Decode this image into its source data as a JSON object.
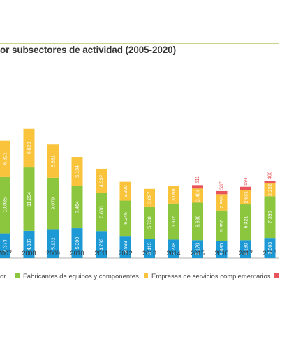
{
  "title": "or subsectores de actividad (2005-2020)",
  "colors": {
    "blue": "#1d9ad6",
    "green": "#8cc63f",
    "yellow": "#f9c33b",
    "red": "#e8545a",
    "axis": "#999999",
    "label": "#333333"
  },
  "legend": {
    "item0_tail": "or",
    "item1": "Fabricantes de equipos y componentes",
    "item2": "Empresas de servicios complementarios"
  },
  "chart_data": {
    "type": "bar",
    "stacked": true,
    "title": "or subsectores de actividad (2005-2020)",
    "categories": [
      "2007",
      "2008",
      "2009",
      "2010",
      "2011",
      "2012",
      "2013",
      "2014",
      "2015",
      "2016",
      "2017",
      "2018"
    ],
    "series": [
      {
        "name": "",
        "color": "#1d9ad6",
        "values": [
          4373,
          4837,
          5132,
          5300,
          4793,
          3933,
          3413,
          3278,
          3179,
          3080,
          3180,
          3563
        ],
        "labels": [
          "4.373",
          "4.837",
          "5.132",
          "5.300",
          "4.793",
          "3.933",
          "3.413",
          "3.278",
          "3.179",
          "3.080",
          "3.180",
          "3.563"
        ]
      },
      {
        "name": "Fabricantes de equipos y componentes",
        "color": "#8cc63f",
        "values": [
          10085,
          11204,
          9079,
          7464,
          6688,
          6246,
          5738,
          6376,
          6639,
          5350,
          6321,
          7390
        ],
        "labels": [
          "10.085",
          "11.204",
          "9.079",
          "7.464",
          "6.688",
          "6.246",
          "5.738",
          "6.376",
          "6.639",
          "5.350",
          "6.321",
          "7.390"
        ]
      },
      {
        "name": "Empresas de servicios complementarios",
        "color": "#f9c33b",
        "values": [
          6323,
          6829,
          5881,
          5134,
          4332,
          3320,
          3097,
          3098,
          2494,
          2895,
          2531,
          2252
        ],
        "labels": [
          "6.323",
          "6.829",
          "5.881",
          "5.134",
          "4.332",
          "3.320",
          "3.097",
          "3.098",
          "2.494",
          "2.895",
          "2.531",
          "2.252"
        ]
      },
      {
        "name": "",
        "color": "#e8545a",
        "values": [
          0,
          0,
          0,
          0,
          0,
          0,
          0,
          0,
          611,
          537,
          594,
          460
        ],
        "labels": [
          "",
          "",
          "",
          "",
          "",
          "",
          "",
          "",
          "611",
          "537",
          "594",
          "460"
        ]
      }
    ]
  }
}
